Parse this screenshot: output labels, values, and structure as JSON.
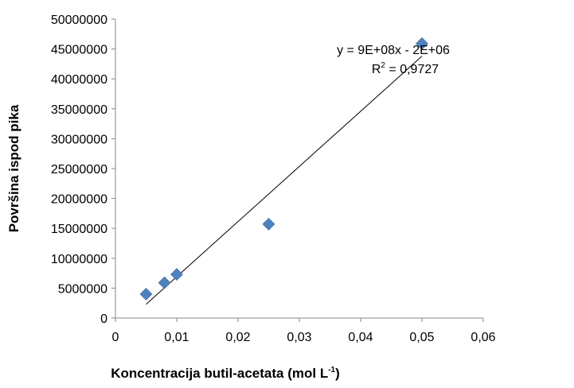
{
  "chart_data": {
    "type": "scatter",
    "xlabel": "Koncentracija butil-acetata (mol L",
    "xlabel_sup": "-1",
    "xlabel_end": ")",
    "ylabel": "Površina ispod pika",
    "xlim": [
      0,
      0.06
    ],
    "ylim": [
      0,
      50000000
    ],
    "x_ticks": [
      "0",
      "0,01",
      "0,02",
      "0,03",
      "0,04",
      "0,05",
      "0,06"
    ],
    "y_ticks": [
      "0",
      "5000000",
      "10000000",
      "15000000",
      "20000000",
      "25000000",
      "30000000",
      "35000000",
      "40000000",
      "45000000",
      "50000000"
    ],
    "series": [
      {
        "marker": "diamond",
        "color": "#4f81bd",
        "points": [
          {
            "x": 0.005,
            "y": 4000000
          },
          {
            "x": 0.008,
            "y": 5900000
          },
          {
            "x": 0.01,
            "y": 7300000
          },
          {
            "x": 0.025,
            "y": 15700000
          },
          {
            "x": 0.05,
            "y": 45900000
          }
        ]
      }
    ],
    "trendline": {
      "x_start": 0.005,
      "y_start": 2300000,
      "x_end": 0.05,
      "y_end": 43800000,
      "color": "#000000",
      "equation": "y = 9E+08x - 2E+06",
      "r2_label": "R",
      "r2_sup": "2",
      "r2_value": " = 0,9727"
    },
    "grid": false,
    "legend": "none"
  }
}
